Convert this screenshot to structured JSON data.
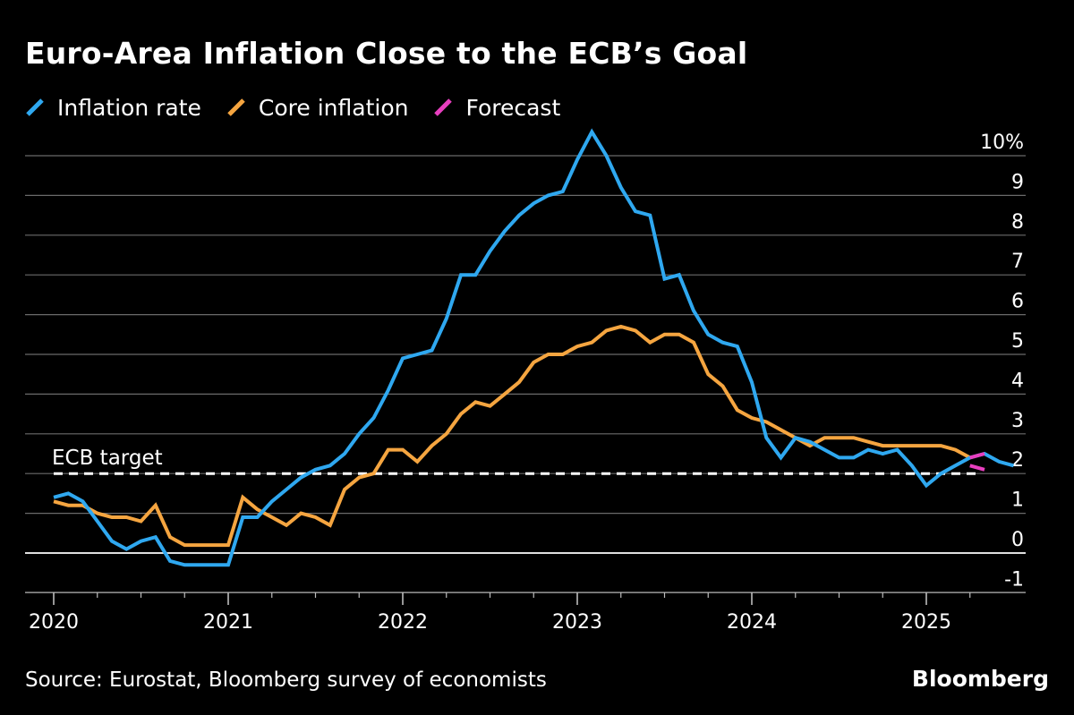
{
  "title": "Euro-Area Inflation Close to the ECB’s Goal",
  "source": "Source: Eurostat, Bloomberg survey of economists",
  "brand": "Bloomberg",
  "colors": {
    "background": "#000000",
    "text": "#ffffff",
    "grid": "#6a6a6a",
    "zero_line": "#ffffff",
    "inflation": "#2fa8f0",
    "core": "#f5a540",
    "forecast": "#e83fbf"
  },
  "chart_data": {
    "type": "line",
    "title": "Euro-Area Inflation Close to the ECB’s Goal",
    "xlabel": "",
    "ylabel": "",
    "x_unit": "month",
    "x_start": "2020-01",
    "ylim": [
      -1,
      10
    ],
    "y_ticks": [
      -1,
      0,
      1,
      2,
      3,
      4,
      5,
      6,
      7,
      8,
      9,
      10
    ],
    "y_tick_labels": [
      "-1",
      "0",
      "1",
      "2",
      "3",
      "4",
      "5",
      "6",
      "7",
      "8",
      "9",
      "10%"
    ],
    "x_ticks": [
      "2020",
      "2021",
      "2022",
      "2023",
      "2024",
      "2025"
    ],
    "grid": true,
    "legend_position": "top-left",
    "reference_line": {
      "label": "ECB target",
      "value": 2.0
    },
    "series": [
      {
        "name": "Inflation rate",
        "values": [
          1.4,
          1.5,
          1.3,
          0.8,
          0.3,
          0.1,
          0.3,
          0.4,
          -0.2,
          -0.3,
          -0.3,
          -0.3,
          -0.3,
          0.9,
          0.9,
          1.3,
          1.6,
          1.9,
          2.1,
          2.2,
          2.5,
          3.0,
          3.4,
          4.1,
          4.9,
          5.0,
          5.1,
          5.9,
          7.0,
          7.0,
          7.6,
          8.1,
          8.5,
          8.8,
          9.0,
          9.1,
          9.9,
          10.6,
          10.0,
          9.2,
          8.6,
          8.5,
          6.9,
          7.0,
          6.1,
          5.5,
          5.3,
          5.2,
          4.3,
          2.9,
          2.4,
          2.9,
          2.8,
          2.6,
          2.4,
          2.4,
          2.6,
          2.5,
          2.6,
          2.2,
          1.7,
          2.0,
          2.2,
          2.4,
          2.5,
          2.3,
          2.2
        ]
      },
      {
        "name": "Core inflation",
        "values": [
          1.3,
          1.2,
          1.2,
          1.0,
          0.9,
          0.9,
          0.8,
          1.2,
          0.4,
          0.2,
          0.2,
          0.2,
          0.2,
          1.4,
          1.1,
          0.9,
          0.7,
          1.0,
          0.9,
          0.7,
          1.6,
          1.9,
          2.0,
          2.6,
          2.6,
          2.3,
          2.7,
          3.0,
          3.5,
          3.8,
          3.7,
          4.0,
          4.3,
          4.8,
          5.0,
          5.0,
          5.2,
          5.3,
          5.6,
          5.7,
          5.6,
          5.3,
          5.5,
          5.5,
          5.3,
          4.5,
          4.2,
          3.6,
          3.4,
          3.3,
          3.1,
          2.9,
          2.7,
          2.9,
          2.9,
          2.9,
          2.8,
          2.7,
          2.7,
          2.7,
          2.7,
          2.7,
          2.6,
          2.4
        ]
      },
      {
        "name": "Forecast",
        "segments": [
          {
            "x": [
              "2025-04",
              "2025-05"
            ],
            "values": [
              2.4,
              2.5
            ]
          },
          {
            "x": [
              "2025-04",
              "2025-05"
            ],
            "values": [
              2.2,
              2.1
            ]
          }
        ]
      }
    ]
  }
}
